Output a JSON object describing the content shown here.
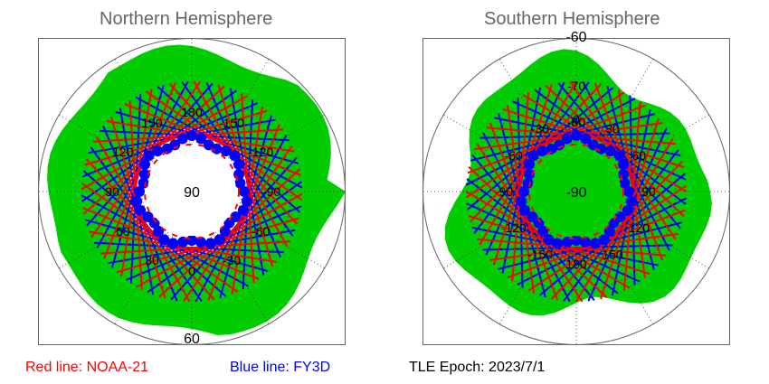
{
  "chart_data": [
    {
      "type": "polar-map",
      "title": "Northern Hemisphere",
      "center_label": "90",
      "edge_label": "60",
      "lat_range": [
        60,
        90
      ],
      "longitude_labels": [
        "180",
        "150",
        "120",
        "90",
        "60",
        "30",
        "0",
        "-30",
        "-60",
        "-90",
        "-120",
        "-150"
      ],
      "grid": "dotted",
      "series": [
        {
          "name": "NOAA-21",
          "color": "#ff0000"
        },
        {
          "name": "FY3D",
          "color": "#0000ff"
        }
      ]
    },
    {
      "type": "polar-map",
      "title": "Southern Hemisphere",
      "center_label": "-90",
      "edge_label": "-60",
      "lat_range": [
        -90,
        -60
      ],
      "latitude_labels": [
        "-70",
        "-80"
      ],
      "longitude_labels": [
        "0",
        "30",
        "60",
        "90",
        "120",
        "150",
        "180",
        "-150",
        "-120",
        "-90",
        "-60",
        "-30"
      ],
      "grid": "dotted",
      "series": [
        {
          "name": "NOAA-21",
          "color": "#ff0000"
        },
        {
          "name": "FY3D",
          "color": "#0000ff"
        }
      ]
    }
  ],
  "legend": {
    "red_text": "Red line: NOAA-21",
    "blue_text": "Blue line: FY3D",
    "epoch_text": "TLE Epoch: 2023/7/1"
  },
  "colors": {
    "land": "#00cc00",
    "ocean": "#ffffff",
    "noaa21": "#ff0000",
    "fy3d": "#0000ff",
    "title": "#666666"
  }
}
